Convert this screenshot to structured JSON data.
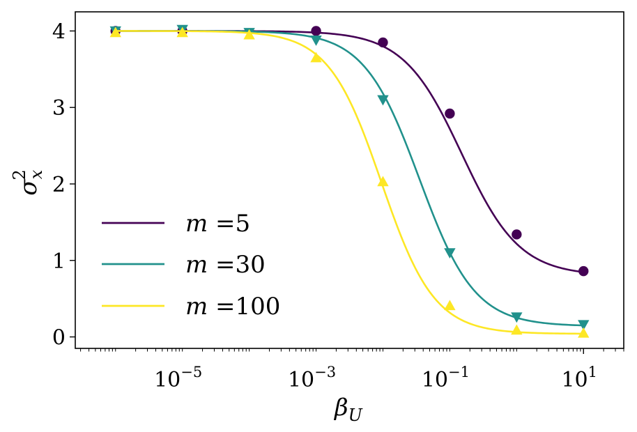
{
  "chart_data": {
    "type": "line",
    "xscale": "log",
    "x_ticks": [
      1e-05,
      0.001,
      0.1,
      10
    ],
    "x_tick_labels": [
      {
        "base": "10",
        "exp": "−5"
      },
      {
        "base": "10",
        "exp": "−3"
      },
      {
        "base": "10",
        "exp": "−1"
      },
      {
        "base": "10",
        "exp": "1"
      }
    ],
    "y_ticks": [
      0,
      1,
      2,
      3,
      4
    ],
    "y_tick_labels": [
      "0",
      "1",
      "2",
      "3",
      "4"
    ],
    "xlim": [
      2.5e-07,
      40
    ],
    "ylim": [
      -0.15,
      4.25
    ],
    "xlabel": {
      "main": "β",
      "sub": "U"
    },
    "ylabel": {
      "main": "σ",
      "sup": "2",
      "sub": "x"
    },
    "grid": false,
    "legend_placement": "lower-left",
    "series": [
      {
        "name": "m =5",
        "legend_var": "m",
        "legend_rest": " =5",
        "color": "#440154",
        "marker": "circle",
        "curve": {
          "top": 4.0,
          "bottom": 0.8,
          "x50": 0.15,
          "slope": 1.0
        },
        "points": [
          {
            "x": 1e-06,
            "y": 4.0
          },
          {
            "x": 1e-05,
            "y": 4.0
          },
          {
            "x": 0.001,
            "y": 4.0
          },
          {
            "x": 0.01,
            "y": 3.85
          },
          {
            "x": 0.1,
            "y": 2.92
          },
          {
            "x": 1,
            "y": 1.34
          },
          {
            "x": 10,
            "y": 0.86
          }
        ]
      },
      {
        "name": "m =30",
        "legend_var": "m",
        "legend_rest": " =30",
        "color": "#21918c",
        "marker": "triangle-down",
        "curve": {
          "top": 4.0,
          "bottom": 0.14,
          "x50": 0.035,
          "slope": 1.05
        },
        "points": [
          {
            "x": 1e-06,
            "y": 4.0
          },
          {
            "x": 1e-05,
            "y": 4.02
          },
          {
            "x": 0.0001,
            "y": 3.98
          },
          {
            "x": 0.001,
            "y": 3.88
          },
          {
            "x": 0.01,
            "y": 3.1
          },
          {
            "x": 0.1,
            "y": 1.1
          },
          {
            "x": 1,
            "y": 0.26
          },
          {
            "x": 10,
            "y": 0.16
          }
        ]
      },
      {
        "name": "m =100",
        "legend_var": "m",
        "legend_rest": " =100",
        "color": "#fde725",
        "marker": "triangle-up",
        "curve": {
          "top": 4.0,
          "bottom": 0.04,
          "x50": 0.0095,
          "slope": 1.1
        },
        "points": [
          {
            "x": 1e-06,
            "y": 3.98
          },
          {
            "x": 1e-05,
            "y": 3.98
          },
          {
            "x": 0.0001,
            "y": 3.95
          },
          {
            "x": 0.001,
            "y": 3.65
          },
          {
            "x": 0.01,
            "y": 2.03
          },
          {
            "x": 0.1,
            "y": 0.41
          },
          {
            "x": 1,
            "y": 0.09
          },
          {
            "x": 10,
            "y": 0.05
          }
        ]
      }
    ]
  }
}
